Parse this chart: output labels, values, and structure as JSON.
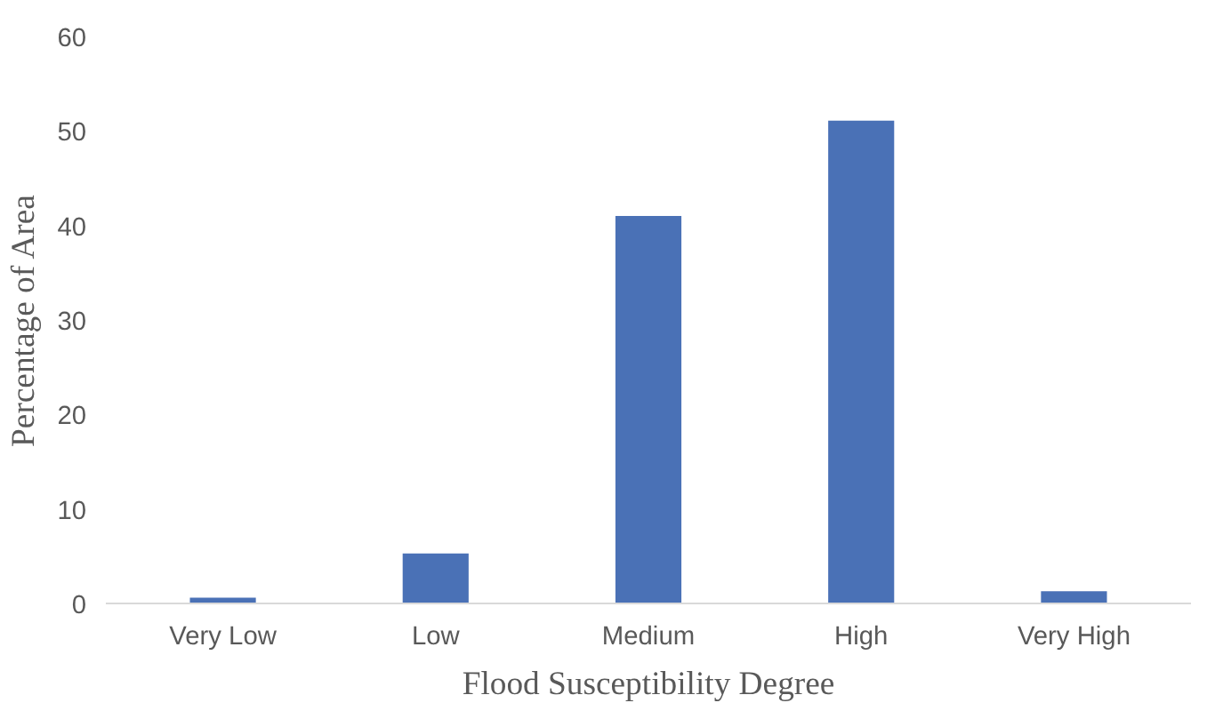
{
  "chart_data": {
    "type": "bar",
    "xlabel": "Flood Susceptibility Degree",
    "ylabel": "Percentage of Area",
    "categories": [
      "Very Low",
      "Low",
      "Medium",
      "High",
      "Very High"
    ],
    "values": [
      0.6,
      5.3,
      41.0,
      51.1,
      1.3
    ],
    "color": "#4a71b6",
    "ylim": [
      0,
      60
    ],
    "yticks": [
      0,
      10,
      20,
      30,
      40,
      50,
      60
    ],
    "grid": false
  }
}
